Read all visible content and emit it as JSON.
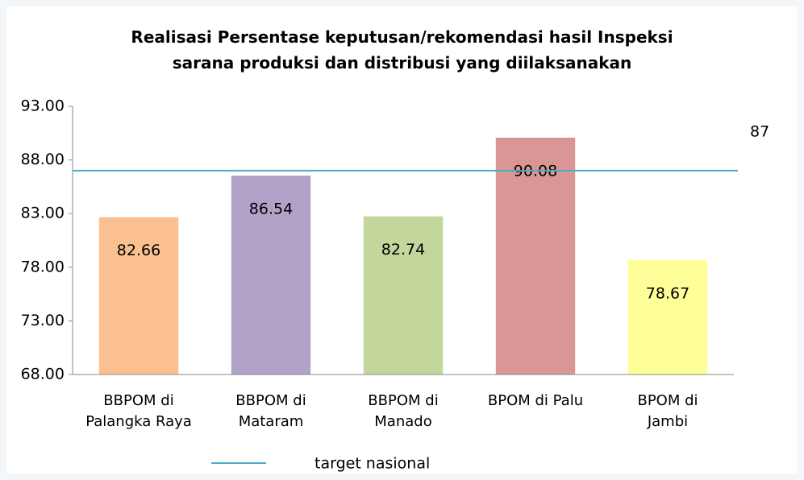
{
  "chart_data": {
    "type": "bar",
    "title": "Realisasi Persentase keputusan/rekomendasi hasil Inspeksi\nsarana produksi dan distribusi yang diilaksanakan",
    "categories": [
      "BBPOM di\nPalangka Raya",
      "BBPOM di\nMataram",
      "BBPOM di\nManado",
      "BPOM di Palu",
      "BPOM di\nJambi"
    ],
    "values": [
      82.66,
      86.54,
      82.74,
      90.08,
      78.67
    ],
    "colors": [
      "#fac090",
      "#b3a2c7",
      "#c3d69b",
      "#d99694",
      "#ffff99"
    ],
    "ylim": [
      68,
      93
    ],
    "yticks": [
      {
        "value": 68,
        "label": "68.00"
      },
      {
        "value": 73,
        "label": "73.00"
      },
      {
        "value": 78,
        "label": "78.00"
      },
      {
        "value": 83,
        "label": "83.00"
      },
      {
        "value": 88,
        "label": "88.00"
      },
      {
        "value": 93,
        "label": "93.00"
      }
    ],
    "target": {
      "name": "target nasional",
      "value": 87,
      "color": "#4bacc6"
    },
    "legend": "bottom"
  }
}
